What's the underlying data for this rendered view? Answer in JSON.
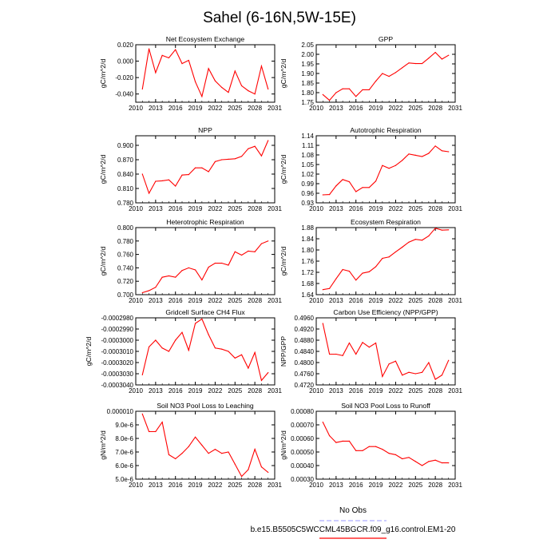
{
  "page": {
    "title": "Sahel (6-16N,5W-15E)",
    "legend_obs_label": "No Obs",
    "legend_model_label": "b.e15.B5505C5WCCML45BGCR.f09_g16.control.EM1-20",
    "colors": {
      "model": "#ff0000",
      "obs": "#9999ff",
      "axis": "#000000"
    }
  },
  "chart_data": [
    {
      "type": "line",
      "title": "Net Ecosystem Exchange",
      "ylabel": "gC/m^2/d",
      "xlabel": "",
      "xlim": [
        2010,
        2031
      ],
      "xticks": [
        "2010",
        "2013",
        "2016",
        "2019",
        "2022",
        "2025",
        "2028",
        "2031"
      ],
      "ylim": [
        -0.05,
        0.02
      ],
      "yticks": [
        "-0.040",
        "-0.020",
        "0.000",
        "0.020"
      ],
      "x": [
        2011,
        2012,
        2013,
        2014,
        2015,
        2016,
        2017,
        2018,
        2019,
        2020,
        2021,
        2022,
        2023,
        2024,
        2025,
        2026,
        2027,
        2028,
        2029,
        2030
      ],
      "series": [
        {
          "name": "b.e15.B5505C5WCCML45BGCR.f09_g16.control.EM1-20",
          "values": [
            -0.034,
            0.015,
            -0.014,
            0.007,
            0.004,
            0.014,
            -0.003,
            0.001,
            -0.025,
            -0.043,
            -0.009,
            -0.024,
            -0.032,
            -0.038,
            -0.012,
            -0.03,
            -0.036,
            -0.04,
            -0.006,
            -0.034
          ]
        }
      ]
    },
    {
      "type": "line",
      "title": "GPP",
      "ylabel": "gC/m^2/d",
      "xlabel": "",
      "xlim": [
        2010,
        2031
      ],
      "xticks": [
        "2010",
        "2013",
        "2016",
        "2019",
        "2022",
        "2025",
        "2028",
        "2031"
      ],
      "ylim": [
        1.75,
        2.05
      ],
      "yticks": [
        "1.75",
        "1.80",
        "1.85",
        "1.90",
        "1.95",
        "2.00",
        "2.05"
      ],
      "x": [
        2011,
        2012,
        2013,
        2014,
        2015,
        2016,
        2017,
        2018,
        2019,
        2020,
        2021,
        2022,
        2023,
        2024,
        2025,
        2026,
        2027,
        2028,
        2029,
        2030
      ],
      "series": [
        {
          "name": "b.e15.B5505C5WCCML45BGCR.f09_g16.control.EM1-20",
          "values": [
            1.79,
            1.76,
            1.8,
            1.82,
            1.82,
            1.78,
            1.815,
            1.815,
            1.86,
            1.9,
            1.885,
            1.905,
            1.93,
            1.955,
            1.952,
            1.952,
            1.98,
            2.01,
            1.975,
            1.995
          ]
        }
      ]
    },
    {
      "type": "line",
      "title": "NPP",
      "ylabel": "gC/m^2/d",
      "xlabel": "",
      "xlim": [
        2010,
        2031
      ],
      "xticks": [
        "2010",
        "2013",
        "2016",
        "2019",
        "2022",
        "2025",
        "2028",
        "2031"
      ],
      "ylim": [
        0.78,
        0.92
      ],
      "yticks": [
        "0.780",
        "0.810",
        "0.840",
        "0.870",
        "0.900"
      ],
      "x": [
        2011,
        2012,
        2013,
        2014,
        2015,
        2016,
        2017,
        2018,
        2019,
        2020,
        2021,
        2022,
        2023,
        2024,
        2025,
        2026,
        2027,
        2028,
        2029,
        2030
      ],
      "series": [
        {
          "name": "b.e15.B5505C5WCCML45BGCR.f09_g16.control.EM1-20",
          "values": [
            0.84,
            0.8,
            0.825,
            0.826,
            0.828,
            0.815,
            0.838,
            0.839,
            0.853,
            0.853,
            0.845,
            0.866,
            0.87,
            0.871,
            0.872,
            0.877,
            0.893,
            0.898,
            0.878,
            0.91
          ]
        }
      ]
    },
    {
      "type": "line",
      "title": "Autotrophic Respiration",
      "ylabel": "gC/m^2/d",
      "xlabel": "",
      "xlim": [
        2010,
        2031
      ],
      "xticks": [
        "2010",
        "2013",
        "2016",
        "2019",
        "2022",
        "2025",
        "2028",
        "2031"
      ],
      "ylim": [
        0.93,
        1.14
      ],
      "yticks": [
        "0.93",
        "0.96",
        "0.99",
        "1.02",
        "1.05",
        "1.08",
        "1.11",
        "1.14"
      ],
      "x": [
        2011,
        2012,
        2013,
        2014,
        2015,
        2016,
        2017,
        2018,
        2019,
        2020,
        2021,
        2022,
        2023,
        2024,
        2025,
        2026,
        2027,
        2028,
        2029,
        2030
      ],
      "series": [
        {
          "name": "b.e15.B5505C5WCCML45BGCR.f09_g16.control.EM1-20",
          "values": [
            0.955,
            0.956,
            0.983,
            1.003,
            0.996,
            0.965,
            0.978,
            0.978,
            0.998,
            1.047,
            1.038,
            1.047,
            1.063,
            1.083,
            1.079,
            1.075,
            1.085,
            1.108,
            1.093,
            1.09
          ]
        }
      ]
    },
    {
      "type": "line",
      "title": "Heterotrophic Respiration",
      "ylabel": "gC/m^2/d",
      "xlabel": "",
      "xlim": [
        2010,
        2031
      ],
      "xticks": [
        "2010",
        "2013",
        "2016",
        "2019",
        "2022",
        "2025",
        "2028",
        "2031"
      ],
      "ylim": [
        0.7,
        0.8
      ],
      "yticks": [
        "0.700",
        "0.720",
        "0.740",
        "0.760",
        "0.780",
        "0.800"
      ],
      "x": [
        2011,
        2012,
        2013,
        2014,
        2015,
        2016,
        2017,
        2018,
        2019,
        2020,
        2021,
        2022,
        2023,
        2024,
        2025,
        2026,
        2027,
        2028,
        2029,
        2030
      ],
      "series": [
        {
          "name": "b.e15.B5505C5WCCML45BGCR.f09_g16.control.EM1-20",
          "values": [
            0.703,
            0.706,
            0.711,
            0.726,
            0.728,
            0.726,
            0.736,
            0.74,
            0.737,
            0.722,
            0.741,
            0.747,
            0.747,
            0.744,
            0.764,
            0.759,
            0.765,
            0.764,
            0.776,
            0.78
          ]
        }
      ]
    },
    {
      "type": "line",
      "title": "Ecosystem Respiration",
      "ylabel": "gC/m^2/d",
      "xlabel": "",
      "xlim": [
        2010,
        2031
      ],
      "xticks": [
        "2010",
        "2013",
        "2016",
        "2019",
        "2022",
        "2025",
        "2028",
        "2031"
      ],
      "ylim": [
        1.64,
        1.88
      ],
      "yticks": [
        "1.64",
        "1.68",
        "1.72",
        "1.76",
        "1.80",
        "1.84",
        "1.88"
      ],
      "x": [
        2011,
        2012,
        2013,
        2014,
        2015,
        2016,
        2017,
        2018,
        2019,
        2020,
        2021,
        2022,
        2023,
        2024,
        2025,
        2026,
        2027,
        2028,
        2029,
        2030
      ],
      "series": [
        {
          "name": "b.e15.B5505C5WCCML45BGCR.f09_g16.control.EM1-20",
          "values": [
            1.658,
            1.662,
            1.697,
            1.73,
            1.724,
            1.692,
            1.717,
            1.722,
            1.74,
            1.77,
            1.775,
            1.793,
            1.81,
            1.828,
            1.838,
            1.835,
            1.85,
            1.878,
            1.871,
            1.872
          ]
        }
      ]
    },
    {
      "type": "line",
      "title": "Gridcell Surface CH4 Flux",
      "ylabel": "gC/m^2/d",
      "xlabel": "",
      "xlim": [
        2010,
        2031
      ],
      "xticks": [
        "2010",
        "2013",
        "2016",
        "2019",
        "2022",
        "2025",
        "2028",
        "2031"
      ],
      "ylim": [
        -0.000304,
        -0.000298
      ],
      "yticks": [
        "-0.0003040",
        "-0.0003030",
        "-0.0003020",
        "-0.0003010",
        "-0.0003000",
        "-0.0002990",
        "-0.0002980"
      ],
      "x": [
        2011,
        2012,
        2013,
        2014,
        2015,
        2016,
        2017,
        2018,
        2019,
        2020,
        2021,
        2022,
        2023,
        2024,
        2025,
        2026,
        2027,
        2028,
        2029,
        2030
      ],
      "series": [
        {
          "name": "b.e15.B5505C5WCCML45BGCR.f09_g16.control.EM1-20",
          "values": [
            -0.0003031,
            -0.0003006,
            -0.0003,
            -0.0003007,
            -0.000301,
            -0.0003,
            -0.0002993,
            -0.0003009,
            -0.0002985,
            -0.0002981,
            -0.0002995,
            -0.0003007,
            -0.0003008,
            -0.000301,
            -0.0003016,
            -0.0003013,
            -0.0003025,
            -0.0003011,
            -0.0003036,
            -0.0003029
          ]
        }
      ]
    },
    {
      "type": "line",
      "title": "Carbon Use Efficiency (NPP/GPP)",
      "ylabel": "NPP/GPP",
      "xlabel": "",
      "xlim": [
        2010,
        2031
      ],
      "xticks": [
        "2010",
        "2013",
        "2016",
        "2019",
        "2022",
        "2025",
        "2028",
        "2031"
      ],
      "ylim": [
        0.472,
        0.496
      ],
      "yticks": [
        "0.4720",
        "0.4760",
        "0.4800",
        "0.4840",
        "0.4880",
        "0.4920",
        "0.4960"
      ],
      "x": [
        2011,
        2012,
        2013,
        2014,
        2015,
        2016,
        2017,
        2018,
        2019,
        2020,
        2021,
        2022,
        2023,
        2024,
        2025,
        2026,
        2027,
        2028,
        2029,
        2030
      ],
      "series": [
        {
          "name": "b.e15.B5505C5WCCML45BGCR.f09_g16.control.EM1-20",
          "values": [
            0.494,
            0.483,
            0.483,
            0.4825,
            0.487,
            0.483,
            0.4872,
            0.4855,
            0.487,
            0.475,
            0.4795,
            0.4805,
            0.4755,
            0.4765,
            0.476,
            0.4765,
            0.48,
            0.474,
            0.4755,
            0.4808
          ]
        }
      ]
    },
    {
      "type": "line",
      "title": "Soil NO3 Pool Loss to Leaching",
      "ylabel": "gN/m^2/d",
      "xlabel": "",
      "xlim": [
        2010,
        2031
      ],
      "xticks": [
        "2010",
        "2013",
        "2016",
        "2019",
        "2022",
        "2025",
        "2028",
        "2031"
      ],
      "ylim": [
        5e-06,
        1e-05
      ],
      "yticks": [
        "5.0e-6",
        "6.0e-6",
        "7.0e-6",
        "8.0e-6",
        "9.0e-6",
        "0.000010"
      ],
      "x": [
        2011,
        2012,
        2013,
        2014,
        2015,
        2016,
        2017,
        2018,
        2019,
        2020,
        2021,
        2022,
        2023,
        2024,
        2025,
        2026,
        2027,
        2028,
        2029,
        2030
      ],
      "series": [
        {
          "name": "b.e15.B5505C5WCCML45BGCR.f09_g16.control.EM1-20",
          "values": [
            9.8e-06,
            8.5e-06,
            8.5e-06,
            9.2e-06,
            6.8e-06,
            6.5e-06,
            6.9e-06,
            7.4e-06,
            8.1e-06,
            7.5e-06,
            6.9e-06,
            7.2e-06,
            6.9e-06,
            7e-06,
            6.1e-06,
            5.2e-06,
            5.7e-06,
            7.2e-06,
            5.9e-06,
            5.5e-06
          ]
        }
      ]
    },
    {
      "type": "line",
      "title": "Soil NO3 Pool Loss to Runoff",
      "ylabel": "gN/m^2/d",
      "xlabel": "",
      "xlim": [
        2010,
        2031
      ],
      "xticks": [
        "2010",
        "2013",
        "2016",
        "2019",
        "2022",
        "2025",
        "2028",
        "2031"
      ],
      "ylim": [
        0.0003,
        0.0008
      ],
      "yticks": [
        "0.00030",
        "0.00040",
        "0.00050",
        "0.00060",
        "0.00070",
        "0.00080"
      ],
      "x": [
        2011,
        2012,
        2013,
        2014,
        2015,
        2016,
        2017,
        2018,
        2019,
        2020,
        2021,
        2022,
        2023,
        2024,
        2025,
        2026,
        2027,
        2028,
        2029,
        2030
      ],
      "series": [
        {
          "name": "b.e15.B5505C5WCCML45BGCR.f09_g16.control.EM1-20",
          "values": [
            0.00072,
            0.00062,
            0.00057,
            0.00058,
            0.00058,
            0.00051,
            0.00051,
            0.00054,
            0.00054,
            0.00052,
            0.00049,
            0.00048,
            0.00045,
            0.00046,
            0.00043,
            0.0004,
            0.00043,
            0.00044,
            0.00042,
            0.00042
          ]
        }
      ]
    }
  ]
}
